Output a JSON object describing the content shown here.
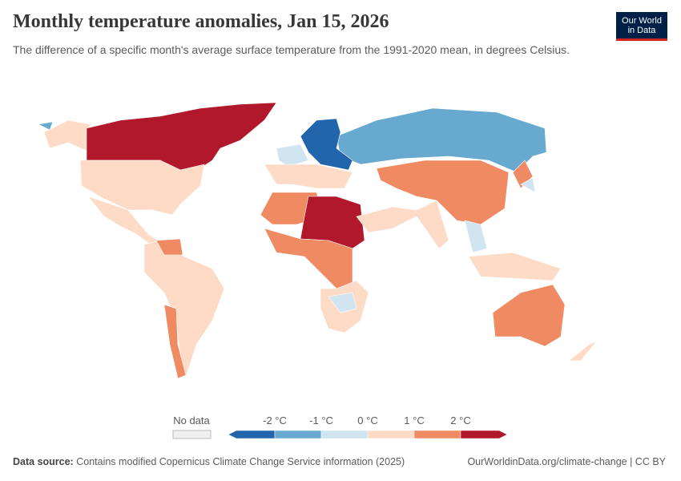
{
  "header": {
    "title": "Monthly temperature anomalies, Jan 15, 2026",
    "subtitle": "The difference of a specific month's average surface temperature from the 1991-2020 mean, in degrees Celsius.",
    "logo": [
      "Our World",
      "in Data"
    ]
  },
  "legend": {
    "no_data": "No data",
    "ticks": [
      "-2 °C",
      "-1 °C",
      "0 °C",
      "1 °C",
      "2 °C"
    ],
    "colors": [
      "#2166ac",
      "#67a9cf",
      "#d1e5f0",
      "#fddbc7",
      "#ef8a62",
      "#b2182b"
    ]
  },
  "footer": {
    "source_label": "Data source:",
    "source": "Contains modified Copernicus Climate Change Service information (2025)",
    "url": "OurWorldinData.org/climate-change | CC BY"
  }
}
